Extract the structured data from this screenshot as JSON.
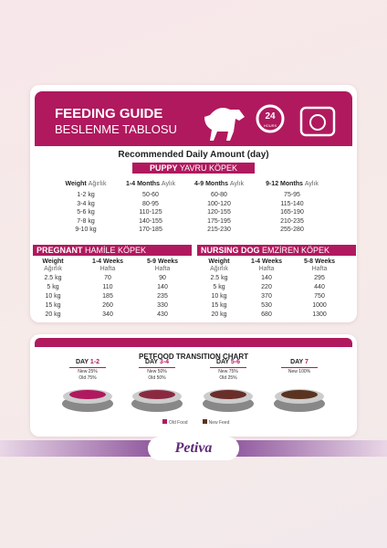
{
  "header": {
    "title": "FEEDING GUIDE",
    "subtitle": "BESLENME TABLOSU",
    "clock_number": "24",
    "clock_text": "HOURS"
  },
  "recommended": "Recommended Daily Amount (day)",
  "puppy": {
    "label": "PUPPY",
    "label_tr": "YAVRU KÖPEK",
    "columns": [
      {
        "en": "Weight",
        "tr": "Ağırlık"
      },
      {
        "en": "1-4 Months",
        "tr": "Aylık"
      },
      {
        "en": "4-9 Months",
        "tr": "Aylık"
      },
      {
        "en": "9-12 Months",
        "tr": "Aylık"
      }
    ],
    "rows": [
      [
        "1-2 kg",
        "50-60",
        "60-80",
        "75-95"
      ],
      [
        "3-4 kg",
        "80-95",
        "100-120",
        "115-140"
      ],
      [
        "5-6 kg",
        "110-125",
        "120-155",
        "165-190"
      ],
      [
        "7-8 kg",
        "140-155",
        "175-195",
        "210-235"
      ],
      [
        "9-10 kg",
        "170-185",
        "215-230",
        "255-280"
      ]
    ]
  },
  "pregnant": {
    "label": "PREGNANT",
    "label_tr": "HAMİLE KÖPEK",
    "columns": [
      {
        "en": "Weight",
        "tr": "Ağırlık"
      },
      {
        "en": "1-4 Weeks",
        "tr": "Hafta"
      },
      {
        "en": "5-9 Weeks",
        "tr": "Hafta"
      }
    ],
    "rows": [
      [
        "2.5 kg",
        "70",
        "90"
      ],
      [
        "5 kg",
        "110",
        "140"
      ],
      [
        "10 kg",
        "185",
        "235"
      ],
      [
        "15 kg",
        "260",
        "330"
      ],
      [
        "20 kg",
        "340",
        "430"
      ]
    ]
  },
  "nursing": {
    "label": "NURSING DOG",
    "label_tr": "EMZİREN KÖPEK",
    "columns": [
      {
        "en": "Weight",
        "tr": "Ağırlık"
      },
      {
        "en": "1-4 Weeks",
        "tr": "Hafta"
      },
      {
        "en": "5-8 Weeks",
        "tr": "Hafta"
      }
    ],
    "rows": [
      [
        "2.5 kg",
        "140",
        "295"
      ],
      [
        "5 kg",
        "220",
        "440"
      ],
      [
        "10 kg",
        "370",
        "750"
      ],
      [
        "15 kg",
        "530",
        "1000"
      ],
      [
        "20 kg",
        "680",
        "1300"
      ]
    ]
  },
  "transition": {
    "title": "PETFOOD TRANSITION CHART",
    "days": [
      {
        "day": "DAY",
        "num": "1-2",
        "new": "New 25%",
        "old": "Old 75%"
      },
      {
        "day": "DAY",
        "num": "3-4",
        "new": "New 50%",
        "old": "Old 50%"
      },
      {
        "day": "DAY",
        "num": "5-6",
        "new": "New 75%",
        "old": "Old 25%"
      },
      {
        "day": "DAY",
        "num": "7",
        "new": "New 100%"
      }
    ],
    "legend": [
      "Old Food",
      "New Feed"
    ]
  },
  "brand": "Petiva"
}
